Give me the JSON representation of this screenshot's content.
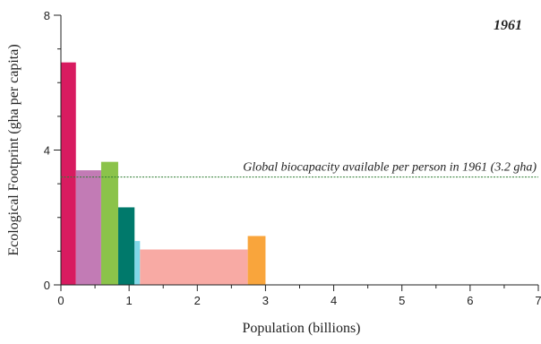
{
  "chart_data": {
    "type": "bar",
    "title": "1961",
    "xlabel": "Population (billions)",
    "ylabel": "Ecological Footprint (gha per capita)",
    "xlim": [
      0,
      7
    ],
    "ylim": [
      0,
      8
    ],
    "x_ticks": [
      0,
      1,
      2,
      3,
      4,
      5,
      6,
      7
    ],
    "y_ticks": [
      0,
      4,
      8
    ],
    "grid": false,
    "reference_line": {
      "value": 3.2,
      "label": "Global biocapacity available per person in 1961 (3.2 gha)",
      "color": "#2e7d32"
    },
    "bars": [
      {
        "x_start": 0.0,
        "x_end": 0.22,
        "value": 6.6,
        "color": "#d81b60"
      },
      {
        "x_start": 0.22,
        "x_end": 0.59,
        "value": 3.4,
        "color": "#c27bb5"
      },
      {
        "x_start": 0.59,
        "x_end": 0.84,
        "value": 3.65,
        "color": "#8bc34a"
      },
      {
        "x_start": 0.84,
        "x_end": 1.08,
        "value": 2.3,
        "color": "#00796b"
      },
      {
        "x_start": 1.08,
        "x_end": 1.16,
        "value": 1.3,
        "color": "#80d8e8"
      },
      {
        "x_start": 1.16,
        "x_end": 2.74,
        "value": 1.05,
        "color": "#f8aaa4"
      },
      {
        "x_start": 2.74,
        "x_end": 3.0,
        "value": 1.45,
        "color": "#f9a53c"
      }
    ]
  }
}
